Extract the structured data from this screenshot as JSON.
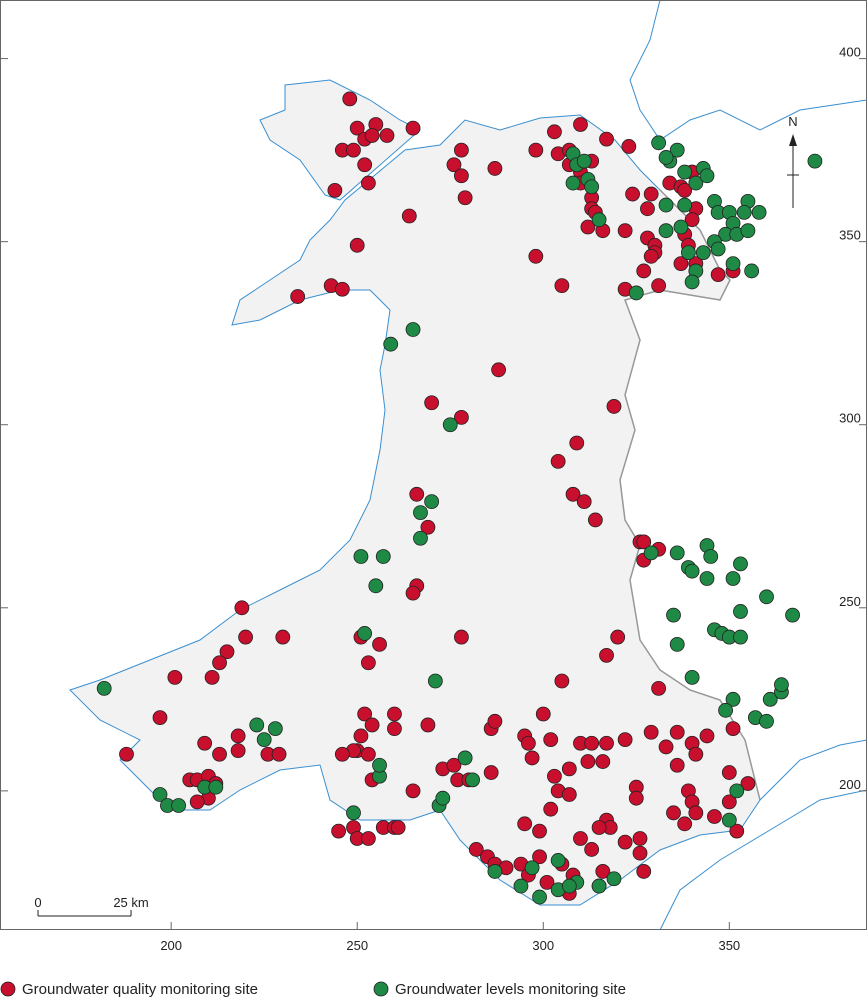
{
  "map": {
    "xlim": [
      154,
      387
    ],
    "ylim": [
      162,
      416
    ],
    "eastings": [
      200,
      250,
      300,
      350
    ],
    "northings": [
      400,
      350,
      300,
      250,
      200
    ],
    "north": "N",
    "scale_bar": {
      "start": 0,
      "end": {
        "value": 25,
        "label": "25 km"
      }
    },
    "sites": [
      {
        "name": "Groundwater quality monitoring site",
        "color": "#c8102e",
        "points": [
          [
            248,
            389
          ],
          [
            250,
            381
          ],
          [
            255,
            382
          ],
          [
            252,
            378
          ],
          [
            254,
            379
          ],
          [
            258,
            379
          ],
          [
            265,
            381
          ],
          [
            246,
            375
          ],
          [
            249,
            375
          ],
          [
            252,
            371
          ],
          [
            253,
            366
          ],
          [
            244,
            364
          ],
          [
            264,
            357
          ],
          [
            250,
            349
          ],
          [
            243,
            338
          ],
          [
            246,
            337
          ],
          [
            234,
            335
          ],
          [
            278,
            375
          ],
          [
            276,
            371
          ],
          [
            278,
            368
          ],
          [
            279,
            362
          ],
          [
            287,
            370
          ],
          [
            298,
            346
          ],
          [
            305,
            338
          ],
          [
            303,
            380
          ],
          [
            310,
            382
          ],
          [
            317,
            378
          ],
          [
            298,
            375
          ],
          [
            304,
            374
          ],
          [
            307,
            375
          ],
          [
            313,
            372
          ],
          [
            307,
            371
          ],
          [
            310,
            369
          ],
          [
            310,
            366
          ],
          [
            313,
            362
          ],
          [
            313,
            359
          ],
          [
            314,
            358
          ],
          [
            312,
            354
          ],
          [
            316,
            353
          ],
          [
            323,
            376
          ],
          [
            324,
            363
          ],
          [
            329,
            363
          ],
          [
            328,
            359
          ],
          [
            334,
            366
          ],
          [
            337,
            365
          ],
          [
            340,
            369
          ],
          [
            338,
            364
          ],
          [
            341,
            359
          ],
          [
            322,
            353
          ],
          [
            328,
            351
          ],
          [
            330,
            349
          ],
          [
            330,
            347
          ],
          [
            329,
            346
          ],
          [
            327,
            342
          ],
          [
            338,
            352
          ],
          [
            339,
            349
          ],
          [
            337,
            344
          ],
          [
            341,
            344
          ],
          [
            347,
            341
          ],
          [
            351,
            342
          ],
          [
            322,
            337
          ],
          [
            331,
            338
          ],
          [
            340,
            356
          ],
          [
            288,
            315
          ],
          [
            270,
            306
          ],
          [
            278,
            302
          ],
          [
            319,
            305
          ],
          [
            309,
            295
          ],
          [
            304,
            290
          ],
          [
            308,
            281
          ],
          [
            311,
            279
          ],
          [
            314,
            274
          ],
          [
            266,
            281
          ],
          [
            269,
            272
          ],
          [
            326,
            268
          ],
          [
            327,
            268
          ],
          [
            331,
            266
          ],
          [
            327,
            263
          ],
          [
            266,
            256
          ],
          [
            265,
            254
          ],
          [
            219,
            250
          ],
          [
            220,
            242
          ],
          [
            230,
            242
          ],
          [
            251,
            242
          ],
          [
            256,
            240
          ],
          [
            278,
            242
          ],
          [
            320,
            242
          ],
          [
            317,
            237
          ],
          [
            305,
            230
          ],
          [
            253,
            235
          ],
          [
            215,
            238
          ],
          [
            213,
            235
          ],
          [
            211,
            231
          ],
          [
            201,
            231
          ],
          [
            331,
            228
          ],
          [
            197,
            220
          ],
          [
            188,
            210
          ],
          [
            209,
            213
          ],
          [
            218,
            215
          ],
          [
            218,
            211
          ],
          [
            213,
            210
          ],
          [
            226,
            210
          ],
          [
            229,
            210
          ],
          [
            205,
            203
          ],
          [
            207,
            203
          ],
          [
            210,
            204
          ],
          [
            212,
            202
          ],
          [
            210,
            198
          ],
          [
            207,
            197
          ],
          [
            252,
            221
          ],
          [
            254,
            218
          ],
          [
            251,
            215
          ],
          [
            250,
            211
          ],
          [
            249,
            211
          ],
          [
            260,
            221
          ],
          [
            260,
            217
          ],
          [
            269,
            218
          ],
          [
            253,
            210
          ],
          [
            254,
            203
          ],
          [
            246,
            210
          ],
          [
            265,
            200
          ],
          [
            273,
            206
          ],
          [
            276,
            207
          ],
          [
            277,
            203
          ],
          [
            286,
            205
          ],
          [
            280,
            203
          ],
          [
            245,
            189
          ],
          [
            249,
            190
          ],
          [
            250,
            187
          ],
          [
            253,
            187
          ],
          [
            257,
            190
          ],
          [
            260,
            190
          ],
          [
            261,
            190
          ],
          [
            286,
            217
          ],
          [
            287,
            219
          ],
          [
            300,
            221
          ],
          [
            295,
            215
          ],
          [
            296,
            213
          ],
          [
            297,
            209
          ],
          [
            302,
            214
          ],
          [
            307,
            206
          ],
          [
            303,
            204
          ],
          [
            304,
            200
          ],
          [
            307,
            199
          ],
          [
            302,
            195
          ],
          [
            295,
            191
          ],
          [
            299,
            189
          ],
          [
            310,
            213
          ],
          [
            313,
            213
          ],
          [
            317,
            213
          ],
          [
            312,
            208
          ],
          [
            316,
            208
          ],
          [
            322,
            214
          ],
          [
            329,
            216
          ],
          [
            333,
            212
          ],
          [
            336,
            216
          ],
          [
            340,
            213
          ],
          [
            341,
            210
          ],
          [
            344,
            215
          ],
          [
            351,
            217
          ],
          [
            325,
            201
          ],
          [
            325,
            198
          ],
          [
            336,
            207
          ],
          [
            339,
            200
          ],
          [
            340,
            197
          ],
          [
            341,
            194
          ],
          [
            335,
            194
          ],
          [
            338,
            191
          ],
          [
            346,
            193
          ],
          [
            350,
            197
          ],
          [
            350,
            205
          ],
          [
            355,
            202
          ],
          [
            352,
            189
          ],
          [
            282,
            184
          ],
          [
            285,
            182
          ],
          [
            287,
            180
          ],
          [
            290,
            179
          ],
          [
            294,
            180
          ],
          [
            296,
            177
          ],
          [
            299,
            182
          ],
          [
            301,
            175
          ],
          [
            305,
            180
          ],
          [
            308,
            177
          ],
          [
            307,
            172
          ],
          [
            313,
            184
          ],
          [
            317,
            192
          ],
          [
            322,
            186
          ],
          [
            327,
            178
          ],
          [
            316,
            178
          ],
          [
            315,
            174
          ],
          [
            318,
            190
          ],
          [
            310,
            187
          ],
          [
            315,
            190
          ],
          [
            326,
            187
          ],
          [
            326,
            183
          ]
        ]
      },
      {
        "name": "Groundwater levels monitoring site",
        "color": "#1f8a45",
        "points": [
          [
            331,
            377
          ],
          [
            334,
            372
          ],
          [
            336,
            375
          ],
          [
            333,
            373
          ],
          [
            308,
            374
          ],
          [
            309,
            371
          ],
          [
            308,
            366
          ],
          [
            312,
            367
          ],
          [
            313,
            365
          ],
          [
            315,
            356
          ],
          [
            311,
            372
          ],
          [
            338,
            369
          ],
          [
            341,
            366
          ],
          [
            343,
            370
          ],
          [
            344,
            368
          ],
          [
            338,
            360
          ],
          [
            333,
            360
          ],
          [
            346,
            361
          ],
          [
            347,
            358
          ],
          [
            350,
            358
          ],
          [
            355,
            361
          ],
          [
            354,
            358
          ],
          [
            351,
            355
          ],
          [
            349,
            352
          ],
          [
            346,
            350
          ],
          [
            352,
            352
          ],
          [
            355,
            353
          ],
          [
            358,
            358
          ],
          [
            347,
            348
          ],
          [
            343,
            347
          ],
          [
            339,
            347
          ],
          [
            341,
            342
          ],
          [
            340,
            339
          ],
          [
            356,
            342
          ],
          [
            351,
            344
          ],
          [
            325,
            336
          ],
          [
            337,
            354
          ],
          [
            333,
            353
          ],
          [
            373,
            372
          ],
          [
            265,
            326
          ],
          [
            259,
            322
          ],
          [
            275,
            300
          ],
          [
            270,
            279
          ],
          [
            267,
            276
          ],
          [
            267,
            269
          ],
          [
            251,
            264
          ],
          [
            257,
            264
          ],
          [
            255,
            256
          ],
          [
            252,
            243
          ],
          [
            271,
            230
          ],
          [
            182,
            228
          ],
          [
            223,
            218
          ],
          [
            228,
            217
          ],
          [
            225,
            214
          ],
          [
            256,
            204
          ],
          [
            256,
            207
          ],
          [
            249,
            194
          ],
          [
            272,
            196
          ],
          [
            273,
            198
          ],
          [
            279,
            209
          ],
          [
            281,
            203
          ],
          [
            197,
            199
          ],
          [
            199,
            196
          ],
          [
            202,
            196
          ],
          [
            209,
            201
          ],
          [
            212,
            201
          ],
          [
            329,
            265
          ],
          [
            336,
            265
          ],
          [
            344,
            267
          ],
          [
            345,
            264
          ],
          [
            339,
            261
          ],
          [
            340,
            260
          ],
          [
            344,
            258
          ],
          [
            353,
            262
          ],
          [
            351,
            258
          ],
          [
            335,
            248
          ],
          [
            336,
            240
          ],
          [
            346,
            244
          ],
          [
            348,
            243
          ],
          [
            350,
            242
          ],
          [
            353,
            242
          ],
          [
            353,
            249
          ],
          [
            360,
            253
          ],
          [
            367,
            248
          ],
          [
            340,
            231
          ],
          [
            351,
            225
          ],
          [
            349,
            222
          ],
          [
            357,
            220
          ],
          [
            360,
            219
          ],
          [
            361,
            225
          ],
          [
            364,
            227
          ],
          [
            364,
            229
          ],
          [
            352,
            200
          ],
          [
            350,
            192
          ],
          [
            287,
            178
          ],
          [
            294,
            174
          ],
          [
            297,
            179
          ],
          [
            304,
            181
          ],
          [
            299,
            171
          ],
          [
            304,
            173
          ],
          [
            309,
            175
          ],
          [
            307,
            174
          ],
          [
            315,
            174
          ],
          [
            319,
            176
          ]
        ]
      }
    ]
  }
}
